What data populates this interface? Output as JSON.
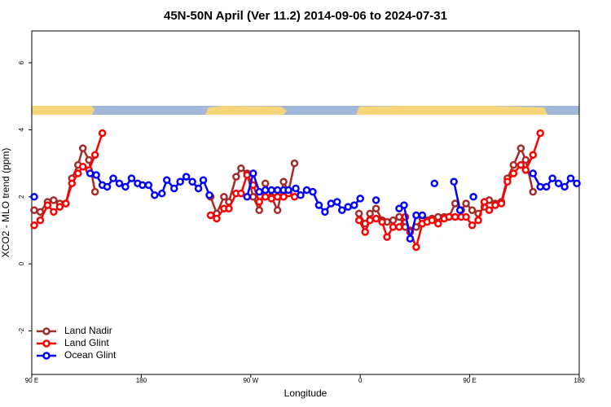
{
  "chart_data": {
    "type": "line",
    "title": "45N-50N April (Ver 11.2)   2014-09-06 to 2024-07-31",
    "xlabel": "Longitude",
    "ylabel": "XCO2 - MLO trend (ppm)",
    "xlim": [
      90,
      540
    ],
    "ylim": [
      -3.3,
      6.95
    ],
    "xticks": [
      {
        "value": 90,
        "label": "90 E"
      },
      180,
      {
        "value": 270,
        "label": "90 W"
      },
      {
        "value": 360,
        "label": "0"
      },
      {
        "value": 450,
        "label": "90 E"
      },
      {
        "value": 540,
        "label": "180"
      }
    ],
    "yticks": [
      -2,
      0,
      2,
      4,
      6
    ],
    "legend": "bottomleft",
    "series": [
      {
        "name": "Land Nadir",
        "color": "#a52a2a",
        "x": [
          92,
          97,
          103,
          108,
          113,
          118,
          123,
          128,
          132,
          137,
          142,
          null,
          237,
          242,
          248,
          252,
          258,
          262,
          267,
          272,
          277,
          282,
          287,
          292,
          297,
          301,
          306,
          null,
          359,
          364,
          368,
          373,
          378,
          382,
          387,
          392,
          397,
          401,
          406,
          411,
          415,
          419,
          424,
          429,
          433,
          438,
          443,
          447,
          452,
          457,
          462,
          466,
          471,
          476,
          481,
          486,
          492,
          496,
          502
        ],
        "values": [
          1.6,
          1.55,
          1.85,
          1.9,
          1.8,
          1.8,
          2.55,
          2.95,
          3.45,
          3.1,
          2.15,
          null,
          2.0,
          1.5,
          2.0,
          1.85,
          2.6,
          2.85,
          2.7,
          2.0,
          1.6,
          2.4,
          2.0,
          1.6,
          2.45,
          2.15,
          3.0,
          null,
          1.5,
          1.2,
          1.5,
          1.65,
          1.3,
          1.25,
          1.3,
          1.4,
          1.1,
          1.0,
          1.1,
          1.35,
          1.3,
          1.35,
          1.4,
          1.4,
          1.4,
          1.8,
          1.6,
          1.8,
          1.6,
          1.5,
          1.7,
          1.9,
          1.8,
          1.85,
          2.55,
          2.95,
          3.45,
          3.1,
          2.15
        ]
      },
      {
        "name": "Land Glint",
        "color": "#ff0000",
        "x": [
          92,
          97,
          103,
          108,
          113,
          118,
          123,
          128,
          132,
          137,
          142,
          148,
          null,
          237,
          242,
          248,
          252,
          258,
          262,
          267,
          272,
          277,
          282,
          287,
          292,
          297,
          301,
          306,
          null,
          359,
          364,
          368,
          373,
          378,
          382,
          387,
          392,
          397,
          401,
          406,
          411,
          415,
          419,
          424,
          429,
          433,
          438,
          443,
          447,
          452,
          457,
          462,
          466,
          471,
          476,
          481,
          486,
          492,
          496,
          502,
          508
        ],
        "values": [
          1.15,
          1.3,
          1.75,
          1.55,
          1.7,
          1.8,
          2.4,
          2.7,
          2.9,
          2.8,
          3.25,
          3.9,
          null,
          1.45,
          1.35,
          1.65,
          1.65,
          2.1,
          2.1,
          2.65,
          2.35,
          1.85,
          2.0,
          1.95,
          2.0,
          2.0,
          2.1,
          2.0,
          null,
          1.3,
          0.95,
          1.3,
          1.35,
          1.25,
          0.8,
          1.1,
          1.1,
          1.4,
          0.95,
          0.5,
          1.2,
          1.25,
          1.3,
          1.2,
          1.35,
          1.4,
          1.4,
          1.4,
          1.4,
          1.15,
          1.3,
          1.85,
          1.6,
          1.75,
          1.8,
          2.45,
          2.7,
          2.95,
          2.8,
          3.25,
          3.9
        ]
      },
      {
        "name": "Ocean Glint",
        "color": "#0000ff",
        "x": [
          92,
          null,
          138,
          143,
          148,
          152,
          157,
          162,
          167,
          172,
          177,
          181,
          186,
          191,
          197,
          201,
          207,
          212,
          217,
          222,
          227,
          231,
          236,
          null,
          267,
          272,
          277,
          282,
          287,
          292,
          297,
          301,
          307,
          311,
          316,
          321,
          326,
          331,
          336,
          341,
          345,
          350,
          355,
          360,
          null,
          373,
          null,
          392,
          396,
          401,
          406,
          411,
          null,
          421,
          null,
          437,
          442,
          null,
          453,
          null,
          502,
          508,
          513,
          518,
          523,
          528,
          533,
          538
        ],
        "values": [
          2.0,
          null,
          2.7,
          2.65,
          2.35,
          2.3,
          2.55,
          2.4,
          2.3,
          2.55,
          2.4,
          2.35,
          2.35,
          2.05,
          2.1,
          2.5,
          2.25,
          2.45,
          2.6,
          2.45,
          2.25,
          2.5,
          2.05,
          null,
          2.0,
          2.7,
          2.15,
          2.2,
          2.2,
          2.2,
          2.2,
          2.2,
          2.25,
          2.05,
          2.2,
          2.15,
          1.75,
          1.55,
          1.8,
          1.85,
          1.6,
          1.7,
          1.75,
          1.95,
          null,
          1.9,
          null,
          1.65,
          1.75,
          0.75,
          1.45,
          1.45,
          null,
          2.4,
          null,
          2.45,
          1.6,
          null,
          2.0,
          null,
          2.7,
          2.3,
          2.3,
          2.55,
          2.4,
          2.3,
          2.55,
          2.4
        ]
      }
    ]
  }
}
